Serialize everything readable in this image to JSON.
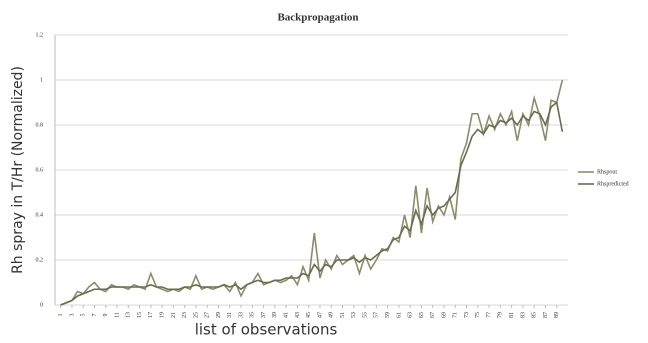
{
  "chart_data": {
    "type": "line",
    "title": "Backpropagation",
    "y_label": "Rh spray in T/Hr (Normalized)",
    "x_label": "list of observations",
    "x": [
      1,
      2,
      3,
      4,
      5,
      6,
      7,
      8,
      9,
      10,
      11,
      12,
      13,
      14,
      15,
      16,
      17,
      18,
      19,
      20,
      21,
      22,
      23,
      24,
      25,
      26,
      27,
      28,
      29,
      30,
      31,
      32,
      33,
      34,
      35,
      36,
      37,
      38,
      39,
      40,
      41,
      42,
      43,
      44,
      45,
      46,
      47,
      48,
      49,
      50,
      51,
      52,
      53,
      54,
      55,
      56,
      57,
      58,
      59,
      60,
      61,
      62,
      63,
      64,
      65,
      66,
      67,
      68,
      69,
      70,
      71,
      72,
      73,
      74,
      75,
      76,
      77,
      78,
      79,
      80,
      81,
      82,
      83,
      84,
      85,
      86,
      87,
      88,
      89,
      90
    ],
    "xlim": [
      0,
      91
    ],
    "xticks": [
      1,
      3,
      5,
      7,
      9,
      11,
      13,
      15,
      17,
      19,
      21,
      23,
      25,
      27,
      29,
      31,
      33,
      35,
      37,
      39,
      41,
      43,
      45,
      47,
      49,
      51,
      53,
      55,
      57,
      59,
      61,
      63,
      65,
      67,
      69,
      71,
      73,
      75,
      77,
      79,
      81,
      83,
      85,
      87,
      89
    ],
    "ylim": [
      0,
      1.2
    ],
    "yticks": [
      0,
      0.2,
      0.4,
      0.6,
      0.8,
      1,
      1.2
    ],
    "grid": true,
    "legend": "right",
    "series": [
      {
        "name": "Rhspout",
        "color": "#8c8c6c",
        "values": [
          0,
          0.01,
          0.02,
          0.06,
          0.05,
          0.08,
          0.1,
          0.07,
          0.06,
          0.09,
          0.08,
          0.08,
          0.07,
          0.09,
          0.08,
          0.07,
          0.14,
          0.08,
          0.07,
          0.06,
          0.07,
          0.06,
          0.08,
          0.07,
          0.13,
          0.07,
          0.08,
          0.07,
          0.08,
          0.09,
          0.06,
          0.1,
          0.04,
          0.09,
          0.1,
          0.14,
          0.09,
          0.1,
          0.11,
          0.1,
          0.11,
          0.13,
          0.09,
          0.17,
          0.11,
          0.32,
          0.12,
          0.2,
          0.16,
          0.22,
          0.18,
          0.2,
          0.22,
          0.14,
          0.22,
          0.16,
          0.2,
          0.25,
          0.24,
          0.3,
          0.28,
          0.4,
          0.3,
          0.53,
          0.32,
          0.52,
          0.37,
          0.44,
          0.4,
          0.48,
          0.38,
          0.65,
          0.72,
          0.85,
          0.85,
          0.76,
          0.84,
          0.78,
          0.85,
          0.8,
          0.86,
          0.73,
          0.85,
          0.8,
          0.92,
          0.84,
          0.73,
          0.91,
          0.9,
          1.0
        ]
      },
      {
        "name": "Rhspredicted",
        "color": "#6b6b4e",
        "values": [
          0,
          0.01,
          0.02,
          0.04,
          0.05,
          0.06,
          0.07,
          0.07,
          0.07,
          0.08,
          0.08,
          0.08,
          0.08,
          0.08,
          0.08,
          0.08,
          0.09,
          0.08,
          0.08,
          0.07,
          0.07,
          0.07,
          0.08,
          0.08,
          0.09,
          0.08,
          0.08,
          0.08,
          0.08,
          0.09,
          0.08,
          0.09,
          0.07,
          0.09,
          0.1,
          0.11,
          0.1,
          0.1,
          0.11,
          0.11,
          0.12,
          0.12,
          0.12,
          0.14,
          0.13,
          0.18,
          0.15,
          0.18,
          0.17,
          0.2,
          0.2,
          0.2,
          0.21,
          0.19,
          0.21,
          0.2,
          0.22,
          0.24,
          0.25,
          0.29,
          0.3,
          0.35,
          0.33,
          0.42,
          0.36,
          0.44,
          0.4,
          0.43,
          0.44,
          0.47,
          0.5,
          0.62,
          0.68,
          0.75,
          0.78,
          0.76,
          0.8,
          0.79,
          0.82,
          0.81,
          0.83,
          0.8,
          0.84,
          0.82,
          0.86,
          0.85,
          0.8,
          0.88,
          0.9,
          0.77
        ]
      }
    ]
  }
}
